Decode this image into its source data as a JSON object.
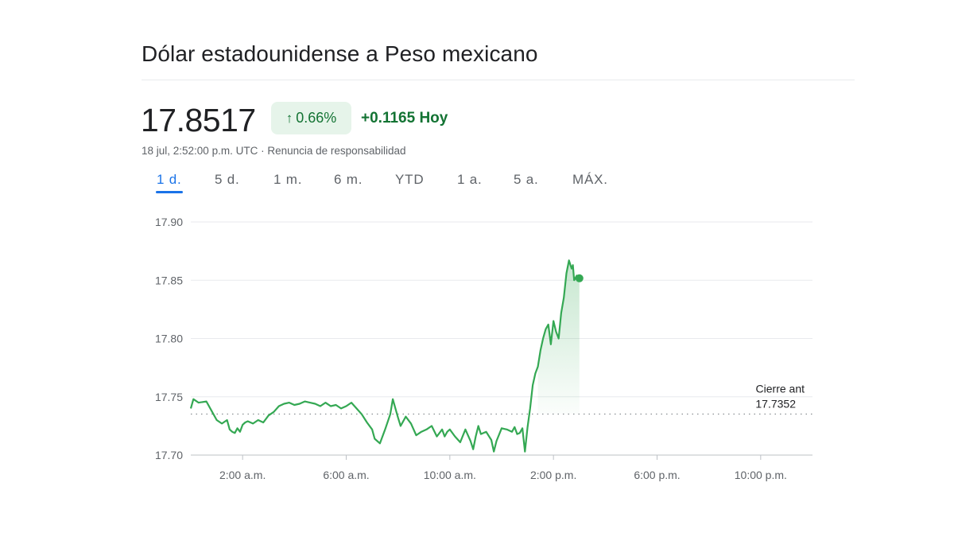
{
  "title": "Dólar estadounidense a Peso mexicano",
  "price": "17.8517",
  "change_percent": "0.66%",
  "change_arrow_icon": "arrow-up-icon",
  "change_value": "+0.1165 Hoy",
  "timestamp": "18 jul, 2:52:00 p.m. UTC",
  "separator": "·",
  "disclaimer": "Renuncia de responsabilidad",
  "tabs": [
    "1 d.",
    "5 d.",
    "1 m.",
    "6 m.",
    "YTD",
    "1 a.",
    "5 a.",
    "MÁX."
  ],
  "active_tab": "1 d.",
  "colors": {
    "positive": "#137333",
    "line": "#34a853",
    "badge_bg": "#e6f4ea",
    "accent": "#1a73e8"
  },
  "chart_data": {
    "type": "line",
    "xlabel": "",
    "ylabel": "",
    "ylim": [
      17.7,
      17.9
    ],
    "yticks": [
      "17.90",
      "17.85",
      "17.80",
      "17.75",
      "17.70"
    ],
    "xlim": [
      0,
      24
    ],
    "xticks": [
      {
        "x": 2,
        "label": "2:00 a.m."
      },
      {
        "x": 6,
        "label": "6:00 a.m."
      },
      {
        "x": 10,
        "label": "10:00 a.m."
      },
      {
        "x": 14,
        "label": "2:00 p.m."
      },
      {
        "x": 18,
        "label": "6:00 p.m."
      },
      {
        "x": 22,
        "label": "10:00 p.m."
      }
    ],
    "grid": true,
    "previous_close": {
      "label": "Cierre ant",
      "value": 17.7352
    },
    "series": [
      {
        "x": [
          0.0,
          0.1,
          0.3,
          0.6,
          0.8,
          1.0,
          1.2,
          1.4,
          1.5,
          1.6,
          1.7,
          1.8,
          1.9,
          2.0,
          2.1,
          2.2,
          2.4,
          2.6,
          2.8,
          3.0,
          3.2,
          3.4,
          3.6,
          3.8,
          4.0,
          4.2,
          4.4,
          4.6,
          4.8,
          5.0,
          5.2,
          5.4,
          5.6,
          5.8,
          6.0,
          6.2,
          6.4,
          6.6,
          6.8,
          7.0,
          7.1,
          7.3,
          7.5,
          7.7,
          7.8,
          7.9,
          8.0,
          8.1,
          8.3,
          8.5,
          8.7,
          8.9,
          9.1,
          9.3,
          9.5,
          9.7,
          9.8,
          9.9,
          10.0,
          10.2,
          10.4,
          10.6,
          10.8,
          10.9,
          11.0,
          11.1,
          11.2,
          11.4,
          11.6,
          11.7,
          11.8,
          12.0,
          12.2,
          12.4,
          12.5,
          12.6,
          12.7,
          12.8,
          12.9,
          13.0,
          13.1,
          13.2,
          13.3,
          13.4,
          13.5,
          13.6,
          13.7,
          13.8,
          13.9,
          14.0,
          14.1,
          14.2,
          14.3,
          14.4,
          14.5,
          14.6,
          14.7,
          14.75,
          14.8,
          14.9,
          15.0
        ],
        "y": [
          17.74,
          17.748,
          17.745,
          17.746,
          17.738,
          17.73,
          17.727,
          17.73,
          17.722,
          17.72,
          17.719,
          17.723,
          17.72,
          17.726,
          17.728,
          17.729,
          17.727,
          17.73,
          17.728,
          17.734,
          17.737,
          17.742,
          17.744,
          17.745,
          17.743,
          17.744,
          17.746,
          17.745,
          17.744,
          17.742,
          17.745,
          17.742,
          17.743,
          17.74,
          17.742,
          17.745,
          17.74,
          17.735,
          17.728,
          17.722,
          17.714,
          17.71,
          17.722,
          17.735,
          17.748,
          17.74,
          17.732,
          17.725,
          17.733,
          17.727,
          17.717,
          17.72,
          17.722,
          17.725,
          17.716,
          17.722,
          17.716,
          17.72,
          17.722,
          17.716,
          17.711,
          17.722,
          17.712,
          17.705,
          17.716,
          17.725,
          17.718,
          17.72,
          17.713,
          17.703,
          17.712,
          17.723,
          17.722,
          17.72,
          17.724,
          17.718,
          17.719,
          17.723,
          17.703,
          17.724,
          17.74,
          17.76,
          17.77,
          17.776,
          17.79,
          17.8,
          17.808,
          17.812,
          17.795,
          17.815,
          17.806,
          17.8,
          17.822,
          17.835,
          17.856,
          17.867,
          17.86,
          17.863,
          17.85,
          17.854,
          17.8517
        ]
      }
    ]
  }
}
